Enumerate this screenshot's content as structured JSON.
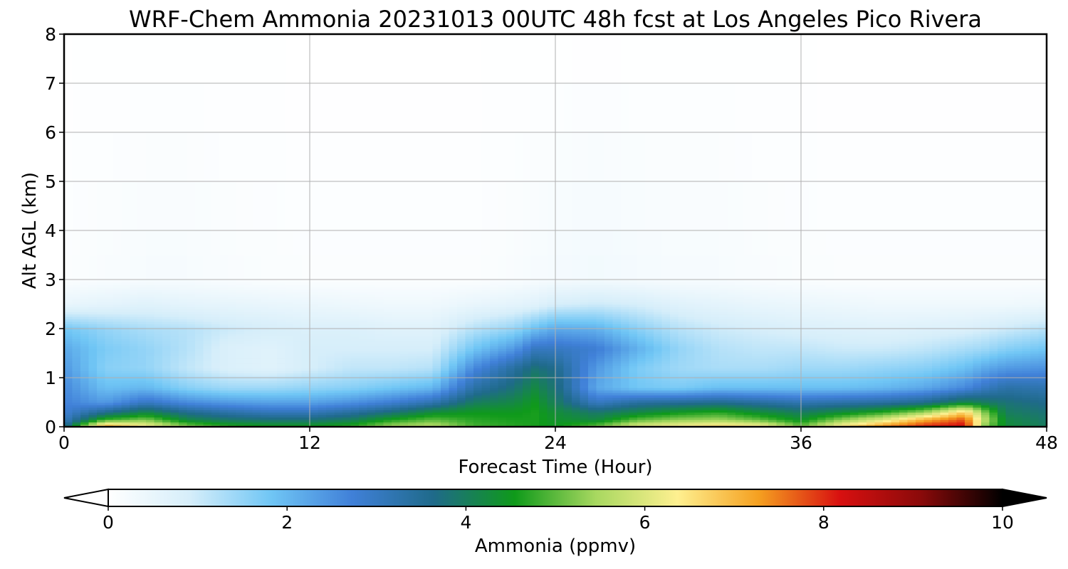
{
  "chart_data": {
    "type": "heatmap",
    "title": "WRF-Chem Ammonia  20231013 00UTC 48h fcst at Los Angeles Pico Rivera",
    "xlabel": "Forecast Time (Hour)",
    "ylabel": "Alt AGL (km)",
    "xlim": [
      0,
      48
    ],
    "ylim": [
      0,
      8
    ],
    "xticks": [
      0,
      12,
      24,
      36,
      48
    ],
    "yticks": [
      0,
      1,
      2,
      3,
      4,
      5,
      6,
      7,
      8
    ],
    "grid": true,
    "colorbar": {
      "label": "Ammonia  (ppmv)",
      "range": [
        0,
        10
      ],
      "ticks": [
        0,
        2,
        4,
        6,
        8,
        10
      ],
      "extend": "both",
      "orientation": "horizontal",
      "colors": [
        "#ffffff",
        "#d6eefa",
        "#70c6f5",
        "#4080d8",
        "#1f6a8a",
        "#0f9a1a",
        "#a8d860",
        "#fef090",
        "#f5a020",
        "#d81010",
        "#8a0a0a",
        "#000000"
      ]
    },
    "times": [
      0,
      2,
      4,
      6,
      8,
      10,
      12,
      14,
      16,
      18,
      20,
      22,
      23,
      24,
      26,
      28,
      30,
      32,
      34,
      36,
      38,
      40,
      42,
      44,
      45,
      46,
      48
    ],
    "profiles_altitude_km": [
      0.0,
      0.15,
      0.3,
      0.5,
      0.8,
      1.2,
      1.6,
      2.0,
      2.5,
      3.0,
      8.0
    ],
    "profiles_ammonia_ppmv": [
      [
        3.5,
        3.0,
        2.8,
        2.7,
        2.6,
        2.4,
        2.2,
        1.8,
        0.5,
        0.1,
        0.0
      ],
      [
        7.5,
        4.8,
        3.6,
        2.4,
        1.9,
        1.6,
        1.7,
        1.5,
        0.6,
        0.15,
        0.0
      ],
      [
        6.5,
        5.2,
        4.2,
        3.0,
        2.0,
        1.5,
        1.5,
        1.3,
        0.7,
        0.2,
        0.0
      ],
      [
        5.4,
        4.2,
        3.6,
        2.6,
        1.6,
        1.1,
        1.2,
        1.2,
        0.6,
        0.2,
        0.0
      ],
      [
        4.8,
        3.9,
        3.3,
        2.4,
        1.4,
        0.8,
        0.8,
        1.0,
        0.55,
        0.15,
        0.0
      ],
      [
        4.6,
        3.8,
        3.1,
        2.3,
        1.4,
        0.7,
        0.7,
        0.9,
        0.5,
        0.12,
        0.0
      ],
      [
        4.6,
        3.8,
        3.1,
        2.3,
        1.5,
        0.9,
        0.9,
        0.8,
        0.45,
        0.1,
        0.0
      ],
      [
        4.8,
        4.0,
        3.4,
        2.5,
        1.6,
        1.1,
        0.9,
        0.8,
        0.4,
        0.1,
        0.0
      ],
      [
        5.6,
        4.6,
        3.8,
        2.8,
        1.8,
        1.1,
        0.9,
        0.7,
        0.35,
        0.1,
        0.0
      ],
      [
        5.8,
        5.0,
        4.3,
        3.2,
        2.0,
        1.2,
        0.9,
        0.7,
        0.35,
        0.1,
        0.0
      ],
      [
        4.9,
        4.7,
        4.5,
        4.0,
        3.3,
        2.6,
        1.8,
        1.2,
        0.5,
        0.1,
        0.0
      ],
      [
        4.7,
        4.6,
        4.5,
        4.2,
        3.8,
        3.4,
        2.4,
        1.5,
        0.6,
        0.15,
        0.0
      ],
      [
        4.6,
        4.6,
        4.6,
        4.5,
        4.2,
        3.8,
        3.0,
        1.9,
        0.7,
        0.2,
        0.0
      ],
      [
        4.5,
        4.4,
        4.3,
        4.0,
        3.8,
        3.6,
        3.0,
        2.2,
        0.9,
        0.25,
        0.0
      ],
      [
        5.2,
        4.2,
        3.9,
        3.0,
        2.2,
        2.4,
        2.8,
        2.1,
        1.0,
        0.3,
        0.0
      ],
      [
        6.2,
        5.0,
        4.2,
        3.4,
        1.8,
        1.7,
        2.1,
        1.6,
        0.9,
        0.25,
        0.0
      ],
      [
        6.5,
        5.3,
        4.5,
        3.5,
        1.7,
        1.4,
        1.5,
        1.2,
        0.7,
        0.2,
        0.0
      ],
      [
        6.8,
        5.4,
        4.7,
        3.6,
        1.9,
        1.3,
        1.2,
        1.0,
        0.6,
        0.2,
        0.0
      ],
      [
        6.6,
        5.0,
        4.3,
        3.4,
        1.9,
        1.3,
        1.1,
        0.9,
        0.5,
        0.15,
        0.0
      ],
      [
        5.2,
        4.4,
        4.0,
        3.2,
        1.9,
        1.4,
        1.1,
        0.8,
        0.45,
        0.12,
        0.0
      ],
      [
        6.6,
        5.3,
        4.3,
        3.3,
        1.9,
        1.4,
        1.0,
        0.75,
        0.4,
        0.1,
        0.0
      ],
      [
        7.6,
        6.0,
        4.7,
        3.4,
        2.0,
        1.5,
        1.0,
        0.7,
        0.35,
        0.1,
        0.0
      ],
      [
        8.2,
        7.1,
        5.4,
        3.6,
        2.2,
        1.6,
        1.1,
        0.75,
        0.35,
        0.1,
        0.0
      ],
      [
        8.4,
        7.8,
        6.8,
        4.2,
        2.6,
        1.9,
        1.3,
        0.8,
        0.35,
        0.1,
        0.0
      ],
      [
        5.2,
        5.6,
        5.2,
        4.0,
        3.0,
        2.2,
        1.4,
        0.9,
        0.35,
        0.1,
        0.0
      ],
      [
        4.3,
        4.2,
        4.0,
        3.8,
        3.3,
        2.4,
        1.6,
        1.0,
        0.35,
        0.1,
        0.0
      ],
      [
        4.0,
        3.9,
        3.8,
        3.6,
        3.2,
        2.5,
        1.8,
        1.2,
        0.4,
        0.1,
        0.0
      ]
    ]
  }
}
